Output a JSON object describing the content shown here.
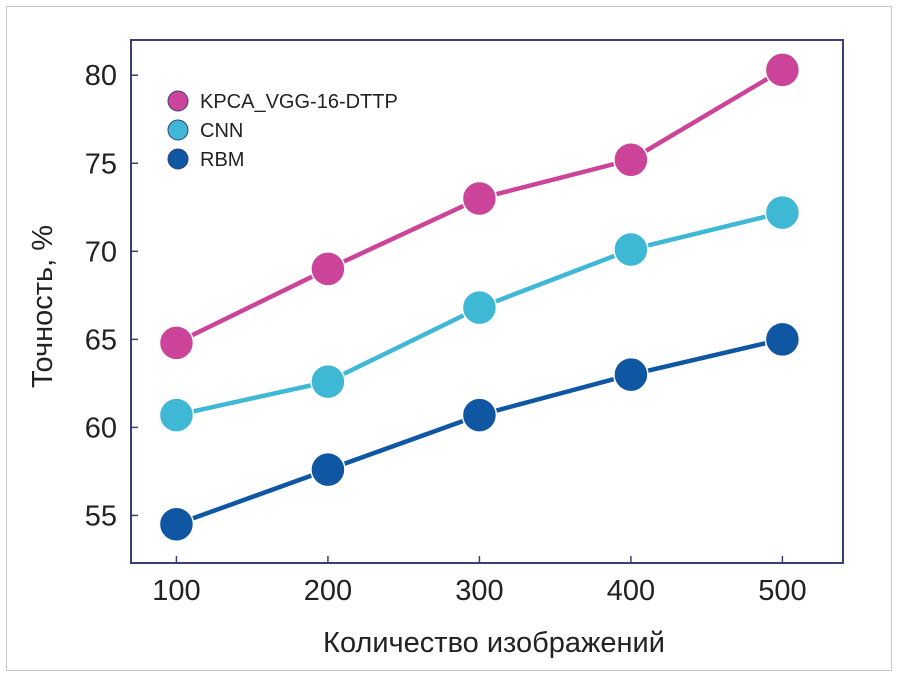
{
  "chart_data": {
    "type": "line",
    "title": "",
    "xlabel": "Количество изображений",
    "ylabel": "Точность, %",
    "x": [
      100,
      200,
      300,
      400,
      500
    ],
    "xticks": [
      "100",
      "200",
      "300",
      "400",
      "500"
    ],
    "yticks": [
      "55",
      "60",
      "65",
      "70",
      "75",
      "80"
    ],
    "xlim": [
      70,
      540
    ],
    "ylim": [
      52.3,
      82
    ],
    "grid": false,
    "legend_position": "top-left",
    "series": [
      {
        "name": "KPCA_VGG-16-DTTP",
        "color": "#cc4499",
        "values": [
          64.8,
          69.0,
          73.0,
          75.2,
          80.3
        ]
      },
      {
        "name": "CNN",
        "color": "#3fb8d6",
        "values": [
          60.7,
          62.6,
          66.8,
          70.1,
          72.2
        ]
      },
      {
        "name": "RBM",
        "color": "#0f57a3",
        "values": [
          54.5,
          57.6,
          60.7,
          63.0,
          65.0
        ]
      }
    ]
  }
}
